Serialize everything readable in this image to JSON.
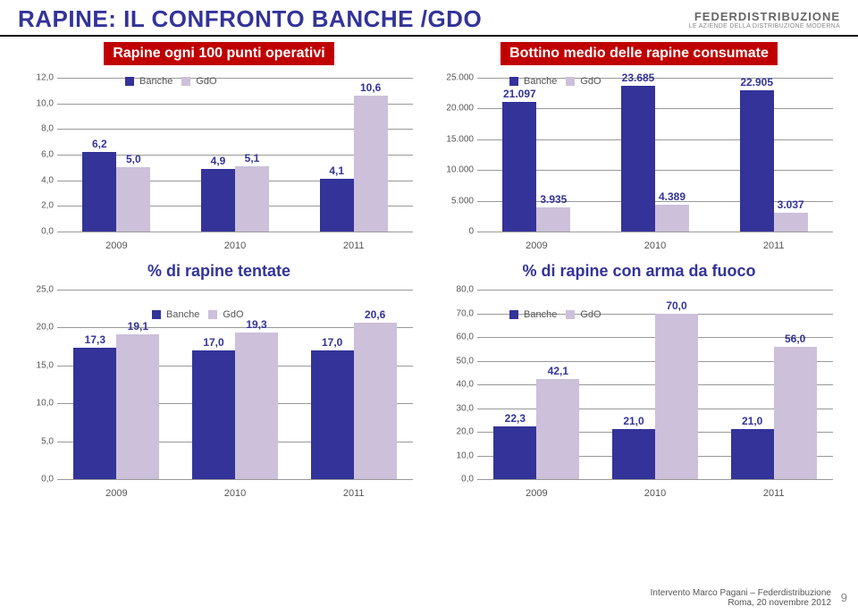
{
  "page_title": "RAPINE: IL CONFRONTO BANCHE /GDO",
  "logo_main": "FEDERDISTRIBUZIONE",
  "logo_sub": "LE AZIENDE DELLA DISTRIBUZIONE MODERNA",
  "legend_banche": "Banche",
  "legend_gdo": "GdO",
  "color_banche": "#333399",
  "color_gdo": "#ccc0da",
  "grid_color": "#999999",
  "chart_tl": {
    "title": "Rapine ogni 100 punti operativi",
    "ylim": [
      0,
      12
    ],
    "ystep": 2,
    "categories": [
      "2009",
      "2010",
      "2011"
    ],
    "banche": [
      6.2,
      4.9,
      4.1
    ],
    "gdo": [
      5.0,
      5.1,
      10.6
    ],
    "banche_fmt": [
      "6,2",
      "4,9",
      "4,1"
    ],
    "gdo_fmt": [
      "5,0",
      "5,1",
      "10,6"
    ]
  },
  "chart_tr": {
    "title": "Bottino medio delle rapine consumate",
    "ylim": [
      0,
      25000
    ],
    "ystep": 5000,
    "categories": [
      "2009",
      "2010",
      "2011"
    ],
    "banche": [
      21097,
      23685,
      22905
    ],
    "gdo": [
      3935,
      4389,
      3037
    ],
    "banche_fmt": [
      "21.097",
      "23.685",
      "22.905"
    ],
    "gdo_fmt": [
      "3.935",
      "4.389",
      "3.037"
    ]
  },
  "chart_bl": {
    "title": "% di rapine tentate",
    "ylim": [
      0,
      25
    ],
    "ystep": 5,
    "categories": [
      "2009",
      "2010",
      "2011"
    ],
    "banche": [
      17.3,
      17.0,
      17.0
    ],
    "gdo": [
      19.1,
      19.3,
      20.6
    ],
    "banche_fmt": [
      "17,3",
      "17,0",
      "17,0"
    ],
    "gdo_fmt": [
      "19,1",
      "19,3",
      "20,6"
    ]
  },
  "chart_br": {
    "title": "% di rapine  con arma da fuoco",
    "ylim": [
      0,
      80
    ],
    "ystep": 10,
    "categories": [
      "2009",
      "2010",
      "2011"
    ],
    "banche": [
      22.3,
      21.0,
      21.0
    ],
    "gdo": [
      42.1,
      70.0,
      56.0
    ],
    "banche_fmt": [
      "22,3",
      "21,0",
      "21,0"
    ],
    "gdo_fmt": [
      "42,1",
      "70,0",
      "56,0"
    ]
  },
  "footer_line1": "Intervento Marco Pagani – Federdistribuzione",
  "footer_line2": "Roma, 20 novembre 2012",
  "page_number": "9"
}
